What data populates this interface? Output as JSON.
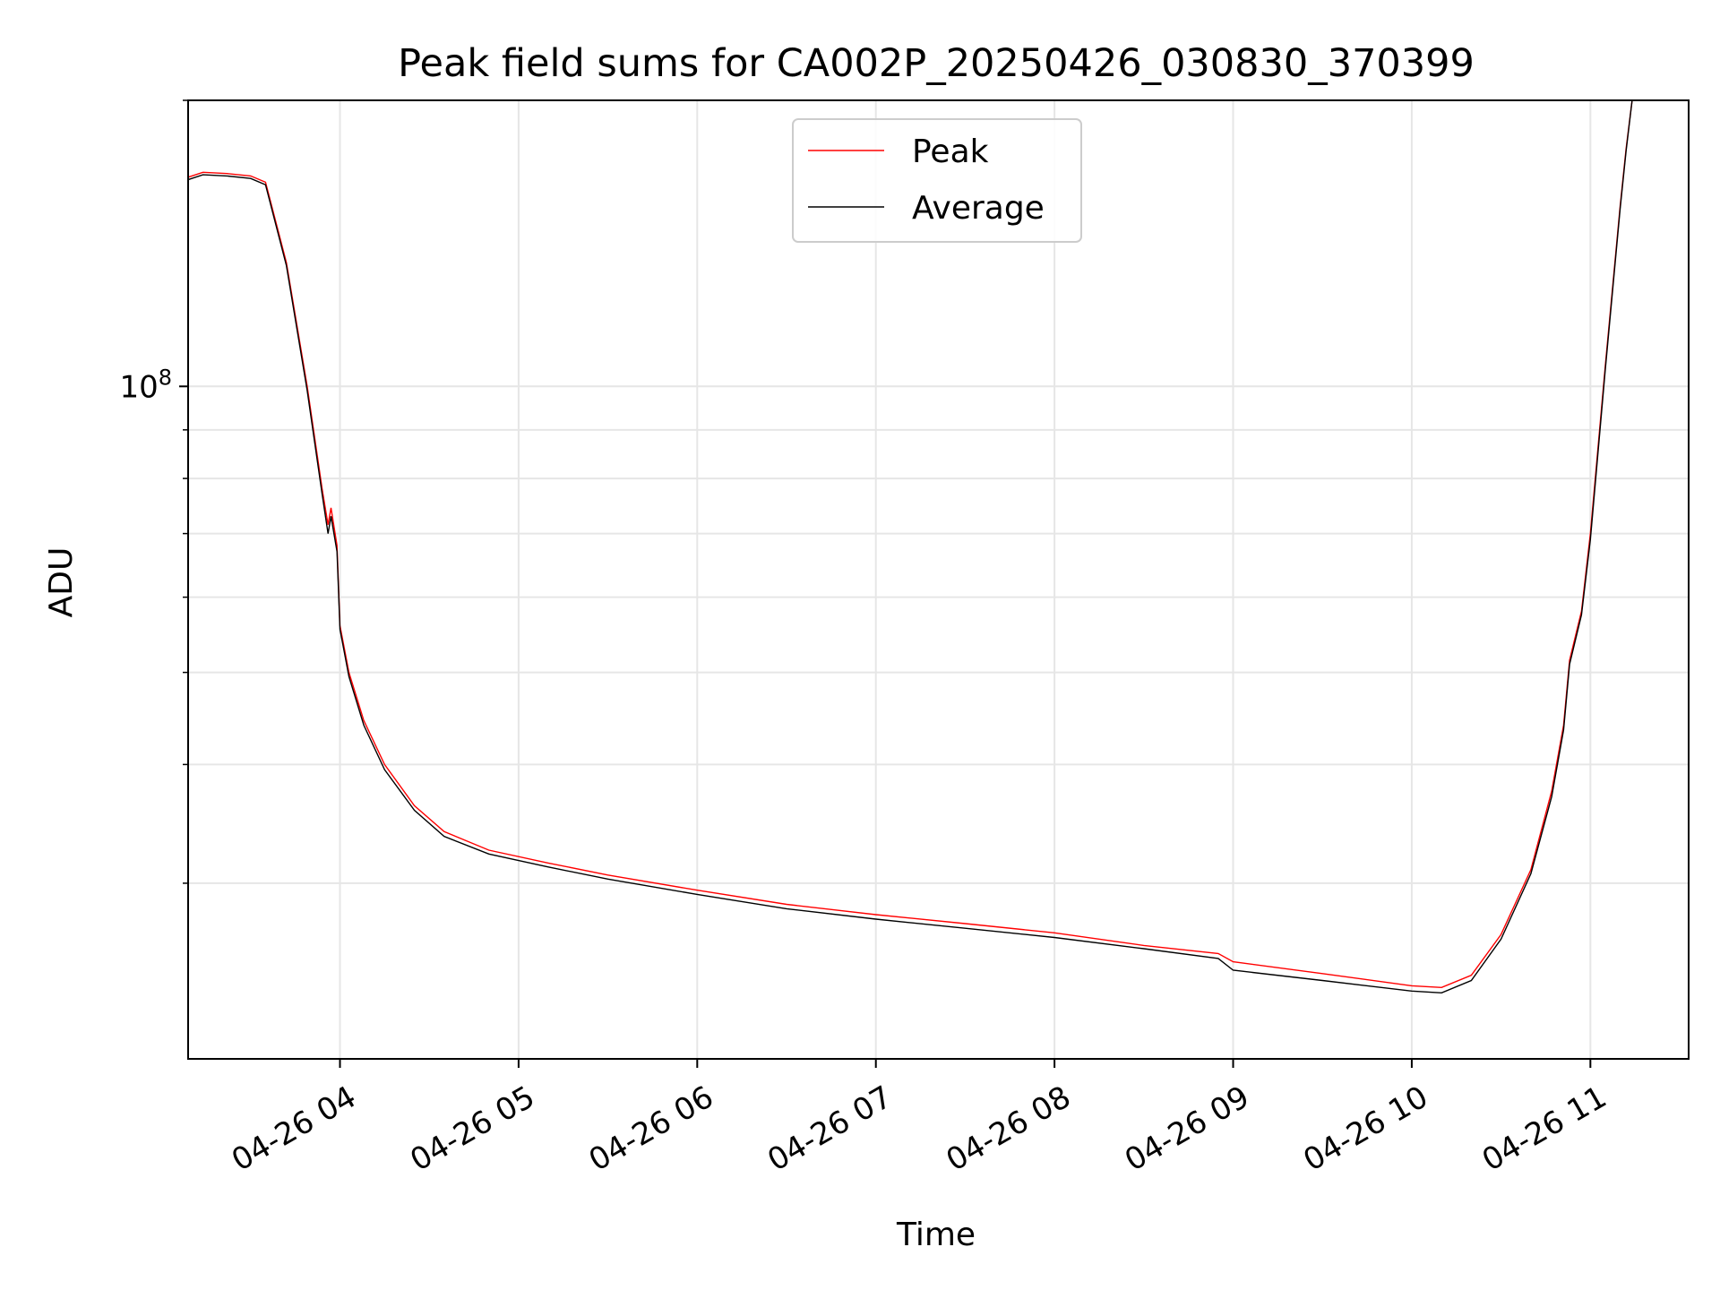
{
  "chart_data": {
    "type": "line",
    "title": "Peak field sums for CA002P_20250426_030830_370399",
    "xlabel": "Time",
    "ylabel": "ADU",
    "y_scale": "log",
    "grid": true,
    "legend_position": "top-center",
    "xlim": [
      "2025-04-26 03:09",
      "2025-04-26 11:33"
    ],
    "ylim": [
      19600000,
      200000000
    ],
    "x_ticks": [
      {
        "t": "2025-04-26 04:00",
        "label": "04-26 04"
      },
      {
        "t": "2025-04-26 05:00",
        "label": "04-26 05"
      },
      {
        "t": "2025-04-26 06:00",
        "label": "04-26 06"
      },
      {
        "t": "2025-04-26 07:00",
        "label": "04-26 07"
      },
      {
        "t": "2025-04-26 08:00",
        "label": "04-26 08"
      },
      {
        "t": "2025-04-26 09:00",
        "label": "04-26 09"
      },
      {
        "t": "2025-04-26 10:00",
        "label": "04-26 10"
      },
      {
        "t": "2025-04-26 11:00",
        "label": "04-26 11"
      }
    ],
    "y_major_ticks": [
      {
        "value": 100000000,
        "label": "10",
        "exponent": "8"
      }
    ],
    "y_minor_ticks": [
      30000000,
      40000000,
      50000000,
      60000000,
      70000000,
      80000000,
      90000000,
      200000000
    ],
    "series": [
      {
        "name": "Peak",
        "color": "#ff0000",
        "points": [
          [
            "2025-04-26 03:09",
            166000000
          ],
          [
            "2025-04-26 03:14",
            168000000
          ],
          [
            "2025-04-26 03:22",
            167500000
          ],
          [
            "2025-04-26 03:30",
            166500000
          ],
          [
            "2025-04-26 03:35",
            164000000
          ],
          [
            "2025-04-26 03:42",
            135000000
          ],
          [
            "2025-04-26 03:49",
            100000000
          ],
          [
            "2025-04-26 03:54",
            78000000
          ],
          [
            "2025-04-26 03:56",
            71500000
          ],
          [
            "2025-04-26 03:57",
            74500000
          ],
          [
            "2025-04-26 03:59",
            68000000
          ],
          [
            "2025-04-26 04:00",
            56000000
          ],
          [
            "2025-04-26 04:03",
            50000000
          ],
          [
            "2025-04-26 04:08",
            44500000
          ],
          [
            "2025-04-26 04:15",
            40000000
          ],
          [
            "2025-04-26 04:25",
            36200000
          ],
          [
            "2025-04-26 04:35",
            34000000
          ],
          [
            "2025-04-26 04:50",
            32500000
          ],
          [
            "2025-04-26 05:10",
            31500000
          ],
          [
            "2025-04-26 05:30",
            30600000
          ],
          [
            "2025-04-26 06:00",
            29500000
          ],
          [
            "2025-04-26 06:30",
            28500000
          ],
          [
            "2025-04-26 07:00",
            27800000
          ],
          [
            "2025-04-26 07:30",
            27200000
          ],
          [
            "2025-04-26 08:00",
            26600000
          ],
          [
            "2025-04-26 08:30",
            25800000
          ],
          [
            "2025-04-26 08:55",
            25300000
          ],
          [
            "2025-04-26 09:00",
            24800000
          ],
          [
            "2025-04-26 09:30",
            24100000
          ],
          [
            "2025-04-26 10:00",
            23400000
          ],
          [
            "2025-04-26 10:10",
            23300000
          ],
          [
            "2025-04-26 10:20",
            24000000
          ],
          [
            "2025-04-26 10:30",
            26500000
          ],
          [
            "2025-04-26 10:40",
            31000000
          ],
          [
            "2025-04-26 10:47",
            37500000
          ],
          [
            "2025-04-26 10:51",
            44000000
          ],
          [
            "2025-04-26 10:53",
            51500000
          ],
          [
            "2025-04-26 10:57",
            58000000
          ],
          [
            "2025-04-26 11:00",
            70000000
          ],
          [
            "2025-04-26 11:05",
            105000000
          ],
          [
            "2025-04-26 11:10",
            155000000
          ],
          [
            "2025-04-26 11:12",
            178000000
          ],
          [
            "2025-04-26 11:14",
            200000000
          ]
        ]
      },
      {
        "name": "Average",
        "color": "#000000",
        "points": [
          [
            "2025-04-26 03:09",
            165000000
          ],
          [
            "2025-04-26 03:14",
            167000000
          ],
          [
            "2025-04-26 03:22",
            166500000
          ],
          [
            "2025-04-26 03:30",
            165500000
          ],
          [
            "2025-04-26 03:35",
            163000000
          ],
          [
            "2025-04-26 03:42",
            134000000
          ],
          [
            "2025-04-26 03:49",
            99000000
          ],
          [
            "2025-04-26 03:54",
            77000000
          ],
          [
            "2025-04-26 03:56",
            70000000
          ],
          [
            "2025-04-26 03:57",
            73000000
          ],
          [
            "2025-04-26 03:59",
            67000000
          ],
          [
            "2025-04-26 04:00",
            55500000
          ],
          [
            "2025-04-26 04:03",
            49500000
          ],
          [
            "2025-04-26 04:08",
            44000000
          ],
          [
            "2025-04-26 04:15",
            39500000
          ],
          [
            "2025-04-26 04:25",
            35800000
          ],
          [
            "2025-04-26 04:35",
            33600000
          ],
          [
            "2025-04-26 04:50",
            32200000
          ],
          [
            "2025-04-26 05:10",
            31200000
          ],
          [
            "2025-04-26 05:30",
            30300000
          ],
          [
            "2025-04-26 06:00",
            29200000
          ],
          [
            "2025-04-26 06:30",
            28200000
          ],
          [
            "2025-04-26 07:00",
            27500000
          ],
          [
            "2025-04-26 07:30",
            26900000
          ],
          [
            "2025-04-26 08:00",
            26300000
          ],
          [
            "2025-04-26 08:30",
            25600000
          ],
          [
            "2025-04-26 08:55",
            25000000
          ],
          [
            "2025-04-26 09:00",
            24300000
          ],
          [
            "2025-04-26 09:30",
            23700000
          ],
          [
            "2025-04-26 10:00",
            23100000
          ],
          [
            "2025-04-26 10:10",
            23000000
          ],
          [
            "2025-04-26 10:20",
            23700000
          ],
          [
            "2025-04-26 10:30",
            26200000
          ],
          [
            "2025-04-26 10:40",
            30700000
          ],
          [
            "2025-04-26 10:47",
            37000000
          ],
          [
            "2025-04-26 10:51",
            43500000
          ],
          [
            "2025-04-26 10:53",
            51000000
          ],
          [
            "2025-04-26 10:57",
            57500000
          ],
          [
            "2025-04-26 11:00",
            69000000
          ],
          [
            "2025-04-26 11:05",
            104000000
          ],
          [
            "2025-04-26 11:10",
            154000000
          ],
          [
            "2025-04-26 11:12",
            177000000
          ],
          [
            "2025-04-26 11:14",
            200000000
          ]
        ]
      }
    ]
  }
}
